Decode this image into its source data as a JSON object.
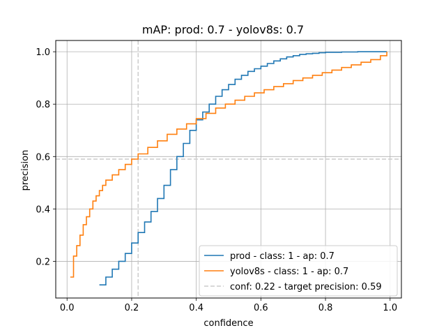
{
  "chart_data": {
    "type": "line",
    "title": "mAP: prod: 0.7 - yolov8s: 0.7",
    "xlabel": "confidence",
    "ylabel": "precision",
    "xlim": [
      -0.035,
      1.035
    ],
    "ylim": [
      0.06,
      1.043
    ],
    "xticks": [
      0.0,
      0.2,
      0.4,
      0.6,
      0.8,
      1.0
    ],
    "xtick_labels": [
      "0.0",
      "0.2",
      "0.4",
      "0.6",
      "0.8",
      "1.0"
    ],
    "yticks": [
      0.2,
      0.4,
      0.6,
      0.8,
      1.0
    ],
    "ytick_labels": [
      "0.2",
      "0.4",
      "0.6",
      "0.8",
      "1.0"
    ],
    "grid": true,
    "legend_position": "bottom-right",
    "step": true,
    "series": [
      {
        "name": " prod - class: 1 - ap: 0.7",
        "color": "#1f77b4",
        "x": [
          0.1,
          0.12,
          0.14,
          0.16,
          0.18,
          0.2,
          0.22,
          0.24,
          0.26,
          0.28,
          0.3,
          0.32,
          0.34,
          0.36,
          0.38,
          0.4,
          0.42,
          0.44,
          0.46,
          0.48,
          0.5,
          0.52,
          0.54,
          0.56,
          0.58,
          0.6,
          0.62,
          0.64,
          0.66,
          0.68,
          0.7,
          0.72,
          0.74,
          0.76,
          0.78,
          0.8,
          0.85,
          0.9,
          0.95,
          0.99
        ],
        "y": [
          0.11,
          0.14,
          0.17,
          0.2,
          0.23,
          0.27,
          0.31,
          0.35,
          0.39,
          0.44,
          0.49,
          0.55,
          0.6,
          0.65,
          0.7,
          0.74,
          0.77,
          0.8,
          0.83,
          0.855,
          0.875,
          0.895,
          0.91,
          0.925,
          0.935,
          0.945,
          0.955,
          0.965,
          0.973,
          0.98,
          0.985,
          0.99,
          0.992,
          0.994,
          0.996,
          0.998,
          0.999,
          1.0,
          1.0,
          1.0
        ]
      },
      {
        "name": " yolov8s - class: 1 - ap: 0.7",
        "color": "#ff7f0e",
        "x": [
          0.01,
          0.02,
          0.03,
          0.04,
          0.05,
          0.06,
          0.07,
          0.08,
          0.09,
          0.1,
          0.11,
          0.12,
          0.14,
          0.16,
          0.18,
          0.2,
          0.22,
          0.25,
          0.28,
          0.31,
          0.34,
          0.37,
          0.4,
          0.43,
          0.46,
          0.49,
          0.52,
          0.55,
          0.58,
          0.61,
          0.64,
          0.67,
          0.7,
          0.73,
          0.76,
          0.79,
          0.82,
          0.85,
          0.88,
          0.91,
          0.94,
          0.97,
          0.99
        ],
        "y": [
          0.14,
          0.22,
          0.26,
          0.3,
          0.34,
          0.37,
          0.4,
          0.43,
          0.45,
          0.47,
          0.49,
          0.51,
          0.53,
          0.55,
          0.57,
          0.59,
          0.61,
          0.635,
          0.66,
          0.685,
          0.705,
          0.725,
          0.745,
          0.765,
          0.785,
          0.8,
          0.815,
          0.83,
          0.843,
          0.855,
          0.867,
          0.878,
          0.89,
          0.9,
          0.91,
          0.92,
          0.93,
          0.94,
          0.95,
          0.96,
          0.97,
          0.985,
          1.0
        ]
      }
    ],
    "reference": {
      "name": "conf: 0.22 - target precision: 0.59",
      "color": "#cccccc",
      "x": 0.22,
      "y": 0.59
    }
  }
}
